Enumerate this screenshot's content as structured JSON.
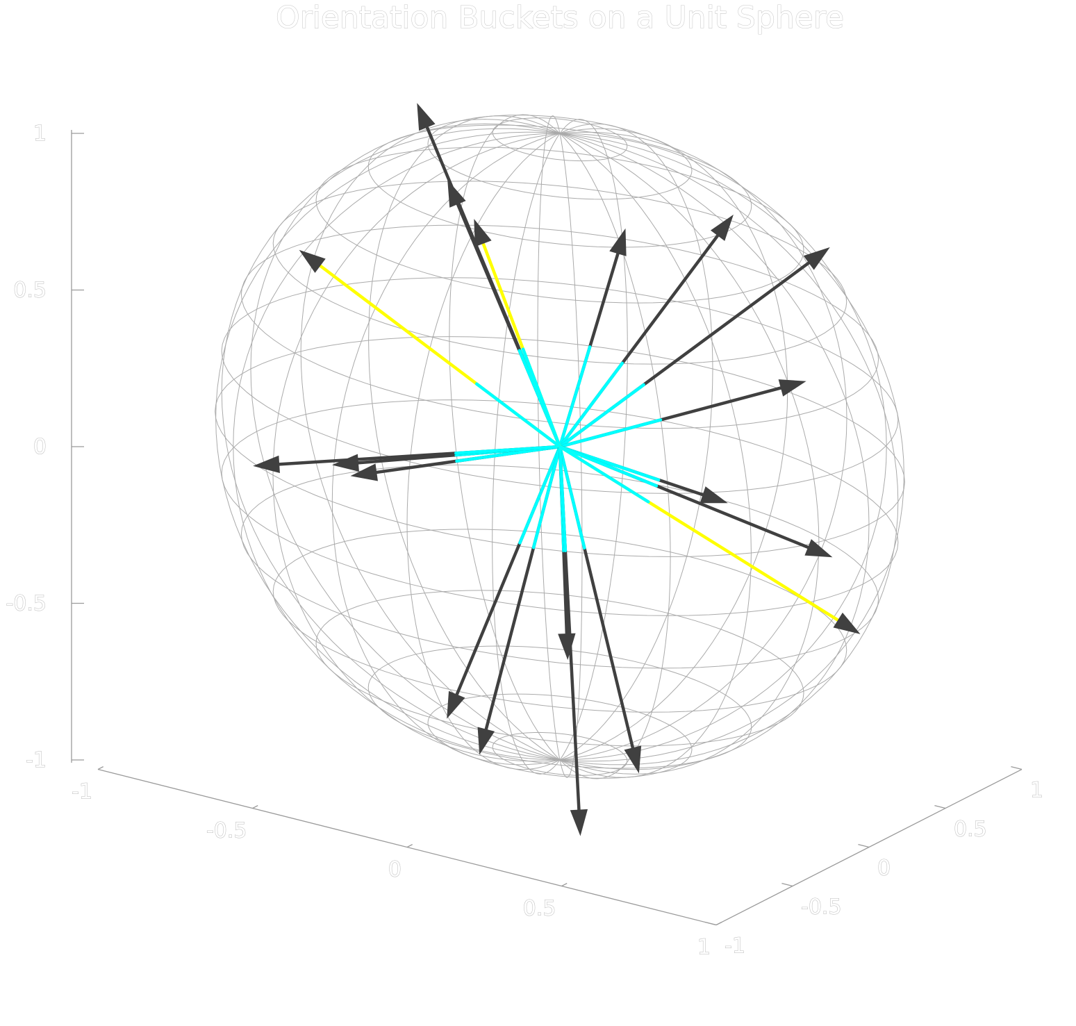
{
  "chart_data": {
    "type": "scatter",
    "title": "Orientation Buckets on a Unit Sphere",
    "xlabel": "",
    "ylabel": "",
    "zlabel": "",
    "xlim": [
      -1,
      1
    ],
    "ylim": [
      -1,
      1
    ],
    "zlim": [
      -1,
      1
    ],
    "xticks": [
      "-1",
      "-0.5",
      "0",
      "0.5",
      "1"
    ],
    "yticks": [
      "-1",
      "-0.5",
      "0",
      "0.5",
      "1"
    ],
    "zticks": [
      "-1",
      "-0.5",
      "0",
      "0.5",
      "1"
    ],
    "grid": false,
    "sphere": {
      "radius": 1,
      "wireframe": true
    },
    "colors": {
      "vector": "#404040",
      "highlight": "#ffff00",
      "origin_segment": "#00ffff",
      "sphere": "#aaaaaa",
      "axis": "#9a9a9a"
    },
    "vectors": [
      {
        "x": -0.54,
        "y": 0.16,
        "z": 0.92,
        "highlight": false
      },
      {
        "x": 0.31,
        "y": -0.2,
        "z": 0.82,
        "highlight": false
      },
      {
        "x": 0.51,
        "y": 0.1,
        "z": 0.84,
        "highlight": false
      },
      {
        "x": -0.56,
        "y": 0.4,
        "z": 0.61,
        "highlight": false
      },
      {
        "x": -0.43,
        "y": 0.31,
        "z": 0.54,
        "highlight": true
      },
      {
        "x": -0.89,
        "y": 0.1,
        "z": 0.38,
        "highlight": true
      },
      {
        "x": 0.51,
        "y": 0.73,
        "z": 0.58,
        "highlight": false
      },
      {
        "x": 0.68,
        "y": 0.23,
        "z": 0.32,
        "highlight": false
      },
      {
        "x": 0.52,
        "y": 0.04,
        "z": -0.06,
        "highlight": false
      },
      {
        "x": 0.75,
        "y": 0.26,
        "z": -0.23,
        "highlight": false
      },
      {
        "x": 0.87,
        "y": 0.2,
        "z": -0.43,
        "highlight": true
      },
      {
        "x": -0.6,
        "y": -0.27,
        "z": -0.14,
        "highlight": false
      },
      {
        "x": -0.58,
        "y": -0.19,
        "z": -0.19,
        "highlight": false
      },
      {
        "x": -0.94,
        "y": -0.1,
        "z": -0.27,
        "highlight": false
      },
      {
        "x": -0.33,
        "y": -0.07,
        "z": -0.93,
        "highlight": false
      },
      {
        "x": -0.2,
        "y": -0.12,
        "z": -1.0,
        "highlight": false
      },
      {
        "x": 0.04,
        "y": -0.03,
        "z": -0.66,
        "highlight": false
      },
      {
        "x": 0.25,
        "y": 0.01,
        "z": -0.98,
        "highlight": false
      },
      {
        "x": 0.15,
        "y": -0.17,
        "z": -1.16,
        "highlight": false
      }
    ]
  }
}
